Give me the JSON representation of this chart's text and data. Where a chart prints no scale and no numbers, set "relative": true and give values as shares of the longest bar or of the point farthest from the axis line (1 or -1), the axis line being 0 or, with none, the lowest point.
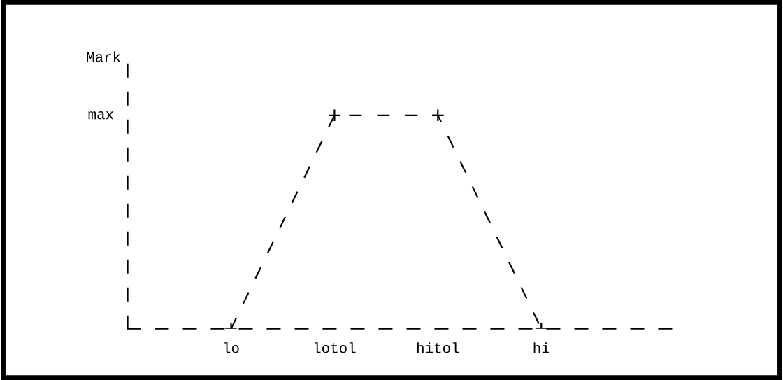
{
  "chart_data": {
    "type": "line",
    "relative": true,
    "ylabel": "Mark",
    "categories": [
      null,
      "lo",
      "lotol",
      "hitol",
      "hi",
      null
    ],
    "series": [
      {
        "color": "#000000",
        "values": [
          null,
          0,
          1,
          1,
          0,
          null
        ]
      }
    ],
    "annotations": [
      "max"
    ],
    "marker": "cross",
    "line_style": "dashed",
    "grid": false,
    "legend": false
  }
}
